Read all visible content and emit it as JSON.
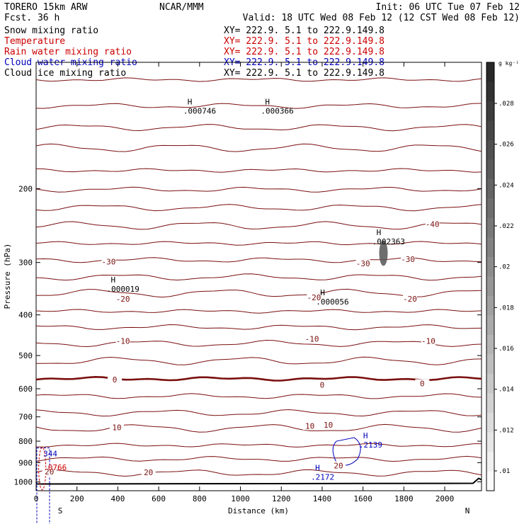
{
  "header": {
    "left_line1": "TORERO  15km ARW",
    "left_line2": "Fcst.   36 h",
    "center_line1": "NCAR/MMM",
    "right_line1": "Init: 06 UTC Tue 07 Feb 12",
    "right_line2": "Valid: 18 UTC Wed 08 Feb 12 (12 CST Wed 08 Feb 12)"
  },
  "fields": [
    {
      "name": "Snow mixing ratio",
      "xy": "XY= 222.9.  5.1 to 222.9.149.8",
      "color": "#000000"
    },
    {
      "name": "Temperature",
      "xy": "XY= 222.9.  5.1 to 222.9.149.8",
      "color": "#cc0000"
    },
    {
      "name": "Rain water mixing ratio",
      "xy": "XY= 222.9.  5.1 to 222.9.149.8",
      "color": "#cc0000"
    },
    {
      "name": "Cloud water mixing ratio",
      "xy": "XY= 222.9.  5.1 to 222.9.149.8",
      "color": "#0000bb"
    },
    {
      "name": "Cloud ice mixing ratio",
      "xy": "XY= 222.9.  5.1 to 222.9.149.8",
      "color": "#000000"
    }
  ],
  "chart_data": {
    "type": "contour cross-section",
    "xlabel": "Distance (km)",
    "ylabel": "Pressure (hPa)",
    "xlim": [
      0,
      2180
    ],
    "ylim": [
      1050,
      100
    ],
    "x_ticks": [
      0,
      200,
      400,
      600,
      800,
      1000,
      1200,
      1400,
      1600,
      1800,
      2000
    ],
    "y_ticks": [
      200,
      300,
      400,
      500,
      600,
      700,
      800,
      900,
      1000
    ],
    "y_log": true,
    "x_end_labels": {
      "left": "S",
      "right": "N"
    },
    "colorbar": {
      "unit": "g kg⁻¹",
      "ticks": [
        ".01",
        ".012",
        ".014",
        ".016",
        ".018",
        ".02",
        ".022",
        ".024",
        ".026",
        ".028"
      ]
    },
    "temperature_contours": [
      {
        "pressure": 110,
        "label": ""
      },
      {
        "pressure": 127,
        "label": ""
      },
      {
        "pressure": 143,
        "label": ""
      },
      {
        "pressure": 160,
        "label": ""
      },
      {
        "pressure": 181,
        "label": ""
      },
      {
        "pressure": 201,
        "label": ""
      },
      {
        "pressure": 222,
        "label": ""
      },
      {
        "pressure": 245,
        "label": "-40"
      },
      {
        "pressure": 270,
        "label": ""
      },
      {
        "pressure": 296,
        "label": "-30"
      },
      {
        "pressure": 325,
        "label": ""
      },
      {
        "pressure": 355,
        "label": "-20"
      },
      {
        "pressure": 392,
        "label": ""
      },
      {
        "pressure": 428,
        "label": "-10"
      },
      {
        "pressure": 468,
        "label": ""
      },
      {
        "pressure": 515,
        "label": ""
      },
      {
        "pressure": 568,
        "label": "0",
        "bold": true
      },
      {
        "pressure": 625,
        "label": ""
      },
      {
        "pressure": 685,
        "label": ""
      },
      {
        "pressure": 745,
        "label": "10"
      },
      {
        "pressure": 818,
        "label": ""
      },
      {
        "pressure": 882,
        "label": ""
      },
      {
        "pressure": 952,
        "label": "20"
      }
    ],
    "contour_labels": [
      {
        "x": 1600,
        "p": 303,
        "text": "-30"
      },
      {
        "x": 1820,
        "p": 296,
        "text": "-30"
      },
      {
        "x": 1940,
        "p": 244,
        "text": "-40"
      },
      {
        "x": 355,
        "p": 300,
        "text": "-30"
      },
      {
        "x": 425,
        "p": 368,
        "text": "-20"
      },
      {
        "x": 1360,
        "p": 365,
        "text": "-20"
      },
      {
        "x": 1830,
        "p": 368,
        "text": "-20"
      },
      {
        "x": 425,
        "p": 463,
        "text": "-10"
      },
      {
        "x": 1350,
        "p": 458,
        "text": "-10"
      },
      {
        "x": 1920,
        "p": 463,
        "text": "-10"
      },
      {
        "x": 385,
        "p": 573,
        "text": "0"
      },
      {
        "x": 1400,
        "p": 590,
        "text": "0"
      },
      {
        "x": 1890,
        "p": 585,
        "text": "0"
      },
      {
        "x": 395,
        "p": 745,
        "text": "10"
      },
      {
        "x": 1340,
        "p": 738,
        "text": "10"
      },
      {
        "x": 1430,
        "p": 735,
        "text": "10"
      },
      {
        "x": 550,
        "p": 952,
        "text": "20"
      },
      {
        "x": 1480,
        "p": 918,
        "text": "20"
      },
      {
        "x": 65,
        "p": 950,
        "text": "20"
      }
    ],
    "extrema_labels": [
      {
        "x": 720,
        "p": 128,
        "text": "H",
        "value": ".000746",
        "color": "#000000"
      },
      {
        "x": 1100,
        "p": 128,
        "text": "H",
        "value": ".000366",
        "color": "#000000"
      },
      {
        "x": 345,
        "p": 340,
        "text": "H",
        "value": ".000019",
        "color": "#000000"
      },
      {
        "x": 1370,
        "p": 365,
        "text": "H",
        "value": ".000056",
        "color": "#000000"
      },
      {
        "x": 1645,
        "p": 262,
        "text": "H",
        "value": ".002363",
        "color": "#000000"
      },
      {
        "x": 1580,
        "p": 800,
        "text": "H",
        "value": ".2139",
        "color": "#0000bb"
      },
      {
        "x": 1345,
        "p": 955,
        "text": "H",
        "value": ".2172",
        "color": "#0000bb"
      },
      {
        "x": 35,
        "p": 840,
        "text": "",
        "value": "344",
        "color": "#0000bb"
      },
      {
        "x": 35,
        "p": 905,
        "text": "",
        "value": ".0766",
        "color": "#cc0000"
      }
    ],
    "shaded_feature": {
      "x_center": 1700,
      "p_center": 285,
      "fill": "gray"
    }
  }
}
